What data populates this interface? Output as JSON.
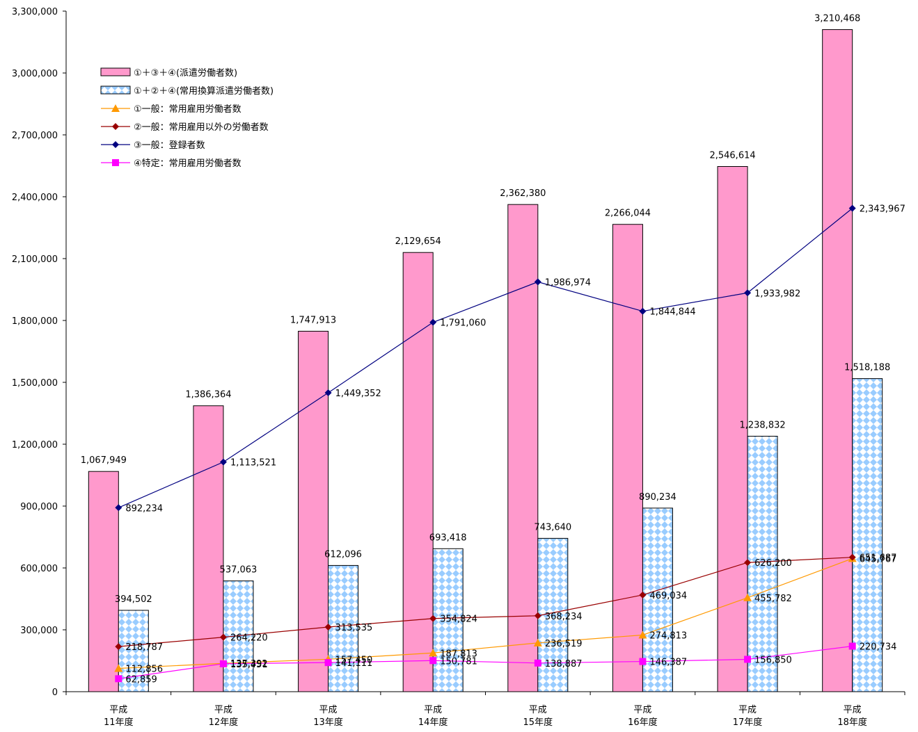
{
  "chart_data": {
    "type": "bar",
    "categories": [
      [
        "平成",
        "11年度"
      ],
      [
        "平成",
        "12年度"
      ],
      [
        "平成",
        "13年度"
      ],
      [
        "平成",
        "14年度"
      ],
      [
        "平成",
        "15年度"
      ],
      [
        "平成",
        "16年度"
      ],
      [
        "平成",
        "17年度"
      ],
      [
        "平成",
        "18年度"
      ]
    ],
    "ylim": [
      0,
      3300000
    ],
    "yticks": [
      0,
      300000,
      600000,
      900000,
      1200000,
      1500000,
      1800000,
      2100000,
      2400000,
      2700000,
      3000000,
      3300000
    ],
    "ytick_labels": [
      "0",
      "300,000",
      "600,000",
      "900,000",
      "1,200,000",
      "1,500,000",
      "1,800,000",
      "2,100,000",
      "2,400,000",
      "2,700,000",
      "3,000,000",
      "3,300,000"
    ],
    "legend_position": "top-left",
    "grid": false,
    "bar_series": [
      {
        "name": "①＋③＋④(派遣労働者数)",
        "color": "#ff99cc",
        "pattern": "solid",
        "values": [
          1067949,
          1386364,
          1747913,
          2129654,
          2362380,
          2266044,
          2546614,
          3210468
        ],
        "labels": [
          "1,067,949",
          "1,386,364",
          "1,747,913",
          "2,129,654",
          "2,362,380",
          "2,266,044",
          "2,546,614",
          "3,210,468"
        ]
      },
      {
        "name": "①＋②＋④(常用換算派遣労働者数)",
        "color": "#99ccff",
        "pattern": "diamond",
        "values": [
          394502,
          537063,
          612096,
          693418,
          743640,
          890234,
          1238832,
          1518188
        ],
        "labels": [
          "394,502",
          "537,063",
          "612,096",
          "693,418",
          "743,640",
          "890,234",
          "1,238,832",
          "1,518,188"
        ]
      }
    ],
    "line_series": [
      {
        "name": "①一般：常用雇用労働者数",
        "color": "#ff9900",
        "marker": "triangle",
        "values": [
          112856,
          137392,
          157450,
          187813,
          236519,
          274813,
          455782,
          645767
        ],
        "labels": [
          "112,856",
          "137,392",
          "157,450",
          "187,813",
          "236,519",
          "274,813",
          "455,782",
          "645,767"
        ]
      },
      {
        "name": "②一般：常用雇用以外の労働者数",
        "color": "#990000",
        "marker": "diamond",
        "values": [
          218787,
          264220,
          313535,
          354824,
          368234,
          469034,
          626200,
          651687
        ],
        "labels": [
          "218,787",
          "264,220",
          "313,535",
          "354,824",
          "368,234",
          "469,034",
          "626,200",
          "651,687"
        ]
      },
      {
        "name": "③一般：登録者数",
        "color": "#000080",
        "marker": "diamond",
        "values": [
          892234,
          1113521,
          1449352,
          1791060,
          1986974,
          1844844,
          1933982,
          2343967
        ],
        "labels": [
          "892,234",
          "1,113,521",
          "1,449,352",
          "1,791,060",
          "1,986,974",
          "1,844,844",
          "1,933,982",
          "2,343,967"
        ]
      },
      {
        "name": "④特定：常用雇用労働者数",
        "color": "#ff00ff",
        "marker": "square",
        "values": [
          62859,
          135451,
          141111,
          150781,
          138887,
          146387,
          156850,
          220734
        ],
        "labels": [
          "62,859",
          "135,451",
          "141,111",
          "150,781",
          "138,887",
          "146,387",
          "156,850",
          "220,734"
        ]
      }
    ]
  }
}
